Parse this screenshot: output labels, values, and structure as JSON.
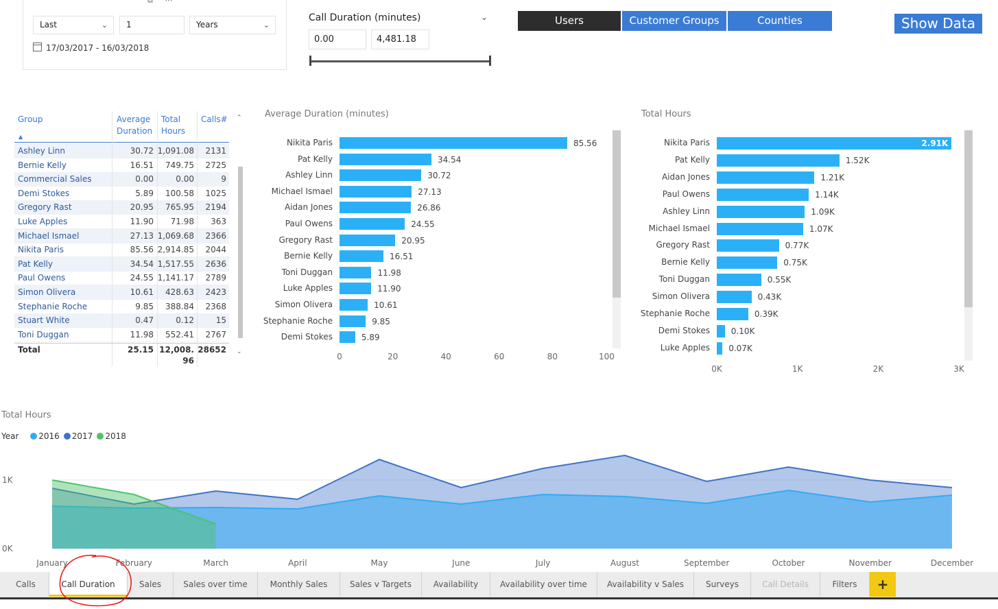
{
  "date_filter": {
    "mode": "Last",
    "count": "1",
    "unit": "Years",
    "range": "17/03/2017 - 16/03/2018"
  },
  "duration_slicer": {
    "title": "Call Duration (minutes)",
    "min": "0.00",
    "max": "4,481.18"
  },
  "view_buttons": [
    {
      "label": "Users",
      "selected": true
    },
    {
      "label": "Customer Groups",
      "selected": false
    },
    {
      "label": "Counties",
      "selected": false
    }
  ],
  "show_data_label": "Show Data",
  "table": {
    "headers": [
      "Group",
      "Average Duration",
      "Total Hours",
      "Calls#"
    ],
    "rows": [
      [
        "Ashley Linn",
        "30.72",
        "1,091.08",
        "2131"
      ],
      [
        "Bernie Kelly",
        "16.51",
        "749.75",
        "2725"
      ],
      [
        "Commercial Sales",
        "0.00",
        "0.00",
        "9"
      ],
      [
        "Demi Stokes",
        "5.89",
        "100.58",
        "1025"
      ],
      [
        "Gregory Rast",
        "20.95",
        "765.95",
        "2194"
      ],
      [
        "Luke Apples",
        "11.90",
        "71.98",
        "363"
      ],
      [
        "Michael Ismael",
        "27.13",
        "1,069.68",
        "2366"
      ],
      [
        "Nikita Paris",
        "85.56",
        "2,914.85",
        "2044"
      ],
      [
        "Pat Kelly",
        "34.54",
        "1,517.55",
        "2636"
      ],
      [
        "Paul Owens",
        "24.55",
        "1,141.17",
        "2789"
      ],
      [
        "Simon Olivera",
        "10.61",
        "428.63",
        "2423"
      ],
      [
        "Stephanie Roche",
        "9.85",
        "388.84",
        "2368"
      ],
      [
        "Stuart White",
        "0.47",
        "0.12",
        "15"
      ],
      [
        "Toni Duggan",
        "11.98",
        "552.41",
        "2767"
      ]
    ],
    "total": {
      "label": "Total",
      "avg": "25.15",
      "hours_line1": "12,008.",
      "hours_line2": "96",
      "calls": "28652"
    }
  },
  "chart_data": [
    {
      "type": "bar",
      "orientation": "horizontal",
      "title": "Average Duration (minutes)",
      "categories": [
        "Nikita Paris",
        "Pat Kelly",
        "Ashley Linn",
        "Michael Ismael",
        "Aidan Jones",
        "Paul Owens",
        "Gregory Rast",
        "Bernie Kelly",
        "Toni Duggan",
        "Luke Apples",
        "Simon Olivera",
        "Stephanie Roche",
        "Demi Stokes"
      ],
      "values": [
        85.56,
        34.54,
        30.72,
        27.13,
        26.86,
        24.55,
        20.95,
        16.51,
        11.98,
        11.9,
        10.61,
        9.85,
        5.89
      ],
      "labels": [
        "85.56",
        "34.54",
        "30.72",
        "27.13",
        "26.86",
        "24.55",
        "20.95",
        "16.51",
        "11.98",
        "11.90",
        "10.61",
        "9.85",
        "5.89"
      ],
      "xlim": [
        0,
        100
      ],
      "xticks": [
        "0",
        "20",
        "40",
        "60",
        "80",
        "100"
      ]
    },
    {
      "type": "bar",
      "orientation": "horizontal",
      "title": "Total Hours",
      "categories": [
        "Nikita Paris",
        "Pat Kelly",
        "Aidan Jones",
        "Paul Owens",
        "Ashley Linn",
        "Michael Ismael",
        "Gregory Rast",
        "Bernie Kelly",
        "Toni Duggan",
        "Simon Olivera",
        "Stephanie Roche",
        "Demi Stokes",
        "Luke Apples"
      ],
      "values": [
        2910,
        1520,
        1210,
        1140,
        1090,
        1070,
        770,
        750,
        550,
        430,
        390,
        100,
        70
      ],
      "labels": [
        "2.91K",
        "1.52K",
        "1.21K",
        "1.14K",
        "1.09K",
        "1.07K",
        "0.77K",
        "0.75K",
        "0.55K",
        "0.43K",
        "0.39K",
        "0.10K",
        "0.07K"
      ],
      "xlim": [
        0,
        3000
      ],
      "xticks": [
        "0K",
        "1K",
        "2K",
        "3K"
      ]
    },
    {
      "type": "area",
      "title": "Total Hours",
      "legend_title": "Year",
      "categories": [
        "January",
        "February",
        "March",
        "April",
        "May",
        "June",
        "July",
        "August",
        "September",
        "October",
        "November",
        "December"
      ],
      "series": [
        {
          "name": "2016",
          "color": "#33aaf5",
          "values": [
            620,
            590,
            600,
            580,
            770,
            650,
            790,
            760,
            660,
            850,
            680,
            780
          ]
        },
        {
          "name": "2017",
          "color": "#3f72c8",
          "values": [
            880,
            650,
            840,
            720,
            1300,
            890,
            1170,
            1360,
            980,
            1190,
            1000,
            890
          ]
        },
        {
          "name": "2018",
          "color": "#4cc46a",
          "values": [
            1000,
            790,
            360,
            null,
            null,
            null,
            null,
            null,
            null,
            null,
            null,
            null
          ]
        }
      ],
      "ylim": [
        0,
        1500
      ],
      "yticks": [
        "0K",
        "1K"
      ]
    }
  ],
  "tabs": [
    {
      "label": "Calls",
      "state": "normal"
    },
    {
      "label": "Call Duration",
      "state": "active"
    },
    {
      "label": "Sales",
      "state": "normal"
    },
    {
      "label": "Sales over time",
      "state": "normal"
    },
    {
      "label": "Monthly Sales",
      "state": "normal"
    },
    {
      "label": "Sales v Targets",
      "state": "normal"
    },
    {
      "label": "Availability",
      "state": "normal"
    },
    {
      "label": "Availability over time",
      "state": "normal"
    },
    {
      "label": "Availability v Sales",
      "state": "normal"
    },
    {
      "label": "Surveys",
      "state": "normal"
    },
    {
      "label": "Call Details",
      "state": "disabled"
    },
    {
      "label": "Filters",
      "state": "normal"
    }
  ],
  "add_tab_label": "+"
}
